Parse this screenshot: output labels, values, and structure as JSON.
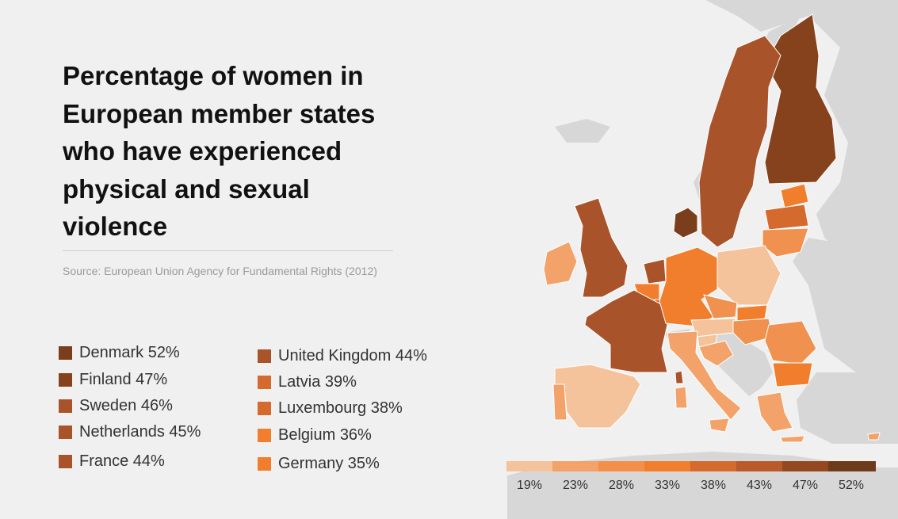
{
  "title": "Percentage of women in European member states who have experienced physical and sexual violence",
  "source": "Source: European Union Agency for Fundamental Rights (2012)",
  "legend": {
    "column1": [
      {
        "label": "Denmark 52%",
        "color": "#7a3e1c"
      },
      {
        "label": "Finland  47%",
        "color": "#85421d"
      },
      {
        "label": "Sweden 46%",
        "color": "#a8532a"
      },
      {
        "label": "Netherlands 45%",
        "color": "#a8532a"
      },
      {
        "label": "France 44%",
        "color": "#a8532a"
      }
    ],
    "column2": [
      {
        "label": "United Kingdom 44%",
        "color": "#a8532a"
      },
      {
        "label": "Latvia 39%",
        "color": "#d46a2e"
      },
      {
        "label": "Luxembourg 38%",
        "color": "#d46a2e"
      },
      {
        "label": "Belgium 36%",
        "color": "#f07e2c"
      },
      {
        "label": "Germany 35%",
        "color": "#f07e2c"
      }
    ]
  },
  "scale": {
    "labels": [
      "19%",
      "23%",
      "28%",
      "33%",
      "38%",
      "43%",
      "47%",
      "52%"
    ],
    "colors": [
      "#f5c39b",
      "#f3a26a",
      "#f38f49",
      "#f07e2c",
      "#d46a2e",
      "#b85a2a",
      "#95471f",
      "#6e3a1c"
    ]
  },
  "colors": {
    "land": "#d7d7d7",
    "sea": "#f0f0f0",
    "border": "#ffffff"
  }
}
